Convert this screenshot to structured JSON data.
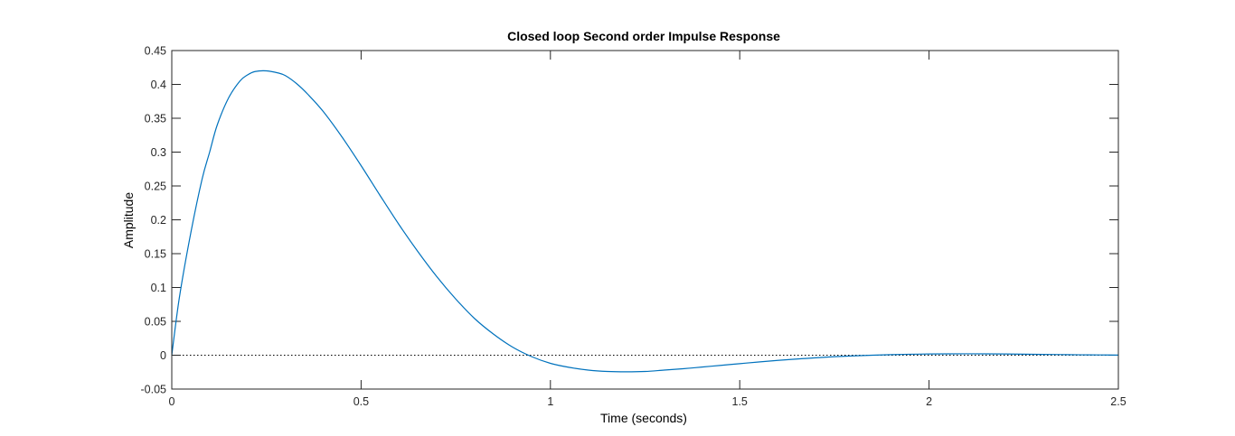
{
  "chart_data": {
    "type": "line",
    "title": "Closed loop Second order Impulse Response",
    "xlabel": "Time (seconds)",
    "ylabel": "Amplitude",
    "xlim": [
      0,
      2.5
    ],
    "ylim": [
      -0.05,
      0.45
    ],
    "xticks": [
      0,
      0.5,
      1,
      1.5,
      2,
      2.5
    ],
    "xtick_labels": [
      "0",
      "0.5",
      "1",
      "1.5",
      "2",
      "2.5"
    ],
    "yticks": [
      -0.05,
      0,
      0.05,
      0.1,
      0.15,
      0.2,
      0.25,
      0.3,
      0.35,
      0.4,
      0.45
    ],
    "ytick_labels": [
      "-0.05",
      "0",
      "0.05",
      "0.1",
      "0.15",
      "0.2",
      "0.25",
      "0.3",
      "0.35",
      "0.4",
      "0.45"
    ],
    "grid": false,
    "zero_line": {
      "y": 0,
      "style": "dotted",
      "color": "#000000"
    },
    "series": [
      {
        "color": "#0072bd",
        "x": [
          0,
          0.02,
          0.05,
          0.08,
          0.1,
          0.12,
          0.15,
          0.18,
          0.2,
          0.22,
          0.25,
          0.28,
          0.3,
          0.33,
          0.36,
          0.4,
          0.45,
          0.5,
          0.55,
          0.6,
          0.65,
          0.7,
          0.75,
          0.8,
          0.85,
          0.9,
          0.95,
          1.0,
          1.05,
          1.1,
          1.15,
          1.2,
          1.25,
          1.3,
          1.35,
          1.4,
          1.45,
          1.5,
          1.55,
          1.6,
          1.65,
          1.7,
          1.75,
          1.8,
          1.85,
          1.9,
          1.95,
          2.0,
          2.05,
          2.1,
          2.15,
          2.2,
          2.25,
          2.3,
          2.35,
          2.4,
          2.45,
          2.5
        ],
        "values": [
          0,
          0.085,
          0.18,
          0.26,
          0.3,
          0.34,
          0.38,
          0.405,
          0.414,
          0.419,
          0.42,
          0.417,
          0.413,
          0.401,
          0.385,
          0.36,
          0.322,
          0.28,
          0.236,
          0.193,
          0.153,
          0.116,
          0.083,
          0.054,
          0.031,
          0.012,
          -0.002,
          -0.012,
          -0.018,
          -0.022,
          -0.024,
          -0.0245,
          -0.024,
          -0.022,
          -0.02,
          -0.0175,
          -0.015,
          -0.0125,
          -0.01,
          -0.0077,
          -0.0057,
          -0.0038,
          -0.0022,
          -0.001,
          0.0,
          0.0008,
          0.0014,
          0.0018,
          0.002,
          0.0021,
          0.002,
          0.0018,
          0.0015,
          0.0012,
          0.0009,
          0.0006,
          0.0004,
          0.0002
        ]
      }
    ]
  }
}
